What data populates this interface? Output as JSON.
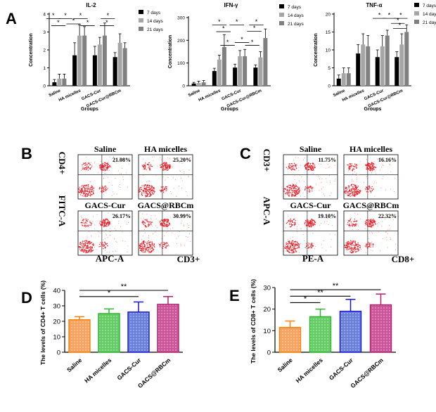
{
  "panel_labels": [
    "A",
    "B",
    "C",
    "D",
    "E"
  ],
  "chart_data": [
    {
      "panel": "A",
      "type": "bar",
      "title": "IL-2",
      "ylabel": "Concentration",
      "xlabel": "Groups",
      "ylim": [
        0,
        4
      ],
      "yticks": [
        0,
        1,
        2,
        3,
        4
      ],
      "categories": [
        "Saline",
        "HA micelles",
        "GACS-Cur",
        "GACS-Cur@RBCm"
      ],
      "series": [
        {
          "name": "7 days",
          "color": "#000000",
          "values": [
            0.2,
            1.7,
            1.7,
            1.6
          ],
          "errors": [
            0.15,
            0.7,
            0.5,
            0.25
          ]
        },
        {
          "name": "14 days",
          "color": "#a6a6a6",
          "values": [
            0.4,
            2.8,
            2.3,
            2.4
          ],
          "errors": [
            0.25,
            0.6,
            0.4,
            0.5
          ]
        },
        {
          "name": "21 days",
          "color": "#808080",
          "values": [
            0.4,
            2.8,
            2.8,
            2.1
          ],
          "errors": [
            0.25,
            0.5,
            0.7,
            0.3
          ]
        }
      ],
      "significance": "*"
    },
    {
      "panel": "A",
      "type": "bar",
      "title": "IFN-γ",
      "ylabel": "Concentration",
      "xlabel": "Groups",
      "ylim": [
        0,
        300
      ],
      "yticks": [
        0,
        100,
        200,
        300
      ],
      "categories": [
        "Saline",
        "HA micelles",
        "GACS-Cur",
        "GACS-Cur@RBCm"
      ],
      "series": [
        {
          "name": "7 days",
          "color": "#000000",
          "values": [
            10,
            65,
            80,
            80
          ],
          "errors": [
            5,
            12,
            15,
            12
          ]
        },
        {
          "name": "14 days",
          "color": "#a6a6a6",
          "values": [
            12,
            115,
            130,
            125
          ],
          "errors": [
            8,
            20,
            25,
            25
          ]
        },
        {
          "name": "21 days",
          "color": "#808080",
          "values": [
            15,
            170,
            130,
            210
          ],
          "errors": [
            8,
            55,
            30,
            40
          ]
        }
      ],
      "significance": "*"
    },
    {
      "panel": "A",
      "type": "bar",
      "title": "TNF-α",
      "ylabel": "Concentration",
      "xlabel": "Groups",
      "ylim": [
        0,
        20
      ],
      "yticks": [
        0,
        5,
        10,
        15,
        20
      ],
      "categories": [
        "Saline",
        "HA micelles",
        "GACS-Cur",
        "GACS-Cur@RBCm"
      ],
      "series": [
        {
          "name": "7 days",
          "color": "#000000",
          "values": [
            2,
            9,
            8,
            8
          ],
          "errors": [
            1,
            2.5,
            2,
            1.5
          ]
        },
        {
          "name": "14 days",
          "color": "#a6a6a6",
          "values": [
            3.5,
            11.5,
            11,
            11.5
          ],
          "errors": [
            1.5,
            3,
            3,
            3
          ]
        },
        {
          "name": "21 days",
          "color": "#808080",
          "values": [
            3.5,
            11,
            14,
            15
          ],
          "errors": [
            1.5,
            3,
            1.5,
            2
          ]
        }
      ],
      "significance": "*"
    },
    {
      "panel": "D",
      "type": "bar",
      "ylabel": "The levels of CD4+ T cells (%)",
      "ylim": [
        0,
        40
      ],
      "yticks": [
        0,
        10,
        20,
        30,
        40
      ],
      "categories": [
        "Saline",
        "HA micelles",
        "GACS-Cur",
        "GACS@RBCm"
      ],
      "values": [
        21,
        25,
        26,
        31
      ],
      "errors": [
        2,
        3,
        6.5,
        5
      ],
      "colors": [
        "#f4a460",
        "#66cc66",
        "#6a7fd8",
        "#cc5599"
      ],
      "edge_colors": [
        "#ff7f00",
        "#2db52d",
        "#1515d8",
        "#b0226e"
      ],
      "significance": [
        {
          "label": "*"
        },
        {
          "label": "**"
        }
      ]
    },
    {
      "panel": "E",
      "type": "bar",
      "ylabel": "The levels of CD8+ T cells (%)",
      "ylim": [
        0,
        30
      ],
      "yticks": [
        0,
        10,
        20,
        30
      ],
      "categories": [
        "Saline",
        "HA micelles",
        "GACS-Cur",
        "GACS@RBCm"
      ],
      "values": [
        11.5,
        16.5,
        19,
        22
      ],
      "errors": [
        3,
        3.5,
        5.5,
        5
      ],
      "colors": [
        "#f4a460",
        "#66cc66",
        "#6a7fd8",
        "#cc5599"
      ],
      "edge_colors": [
        "#ff7f00",
        "#2db52d",
        "#1515d8",
        "#b0226e"
      ],
      "significance": [
        {
          "label": "*"
        },
        {
          "label": "**"
        },
        {
          "label": "**"
        }
      ]
    }
  ],
  "flow": {
    "B": {
      "y_axis": [
        "CD4+",
        "FITC-A"
      ],
      "x_axis": [
        "APC-A",
        "CD3+"
      ],
      "plots": [
        {
          "name": "Saline",
          "percent": "21.08%"
        },
        {
          "name": "HA micelles",
          "percent": "25.20%"
        },
        {
          "name": "GACS-Cur",
          "percent": "26.17%"
        },
        {
          "name": "GACS@RBCm",
          "percent": "30.99%"
        }
      ]
    },
    "C": {
      "y_axis": [
        "CD3+",
        "APC-A"
      ],
      "x_axis": [
        "PE-A",
        "CD8+"
      ],
      "plots": [
        {
          "name": "Saline",
          "percent": "11.75%"
        },
        {
          "name": "HA micelles",
          "percent": "16.16%"
        },
        {
          "name": "GACS-Cur",
          "percent": "19.10%"
        },
        {
          "name": "GACS@RBCm",
          "percent": "22.32%"
        }
      ]
    }
  }
}
